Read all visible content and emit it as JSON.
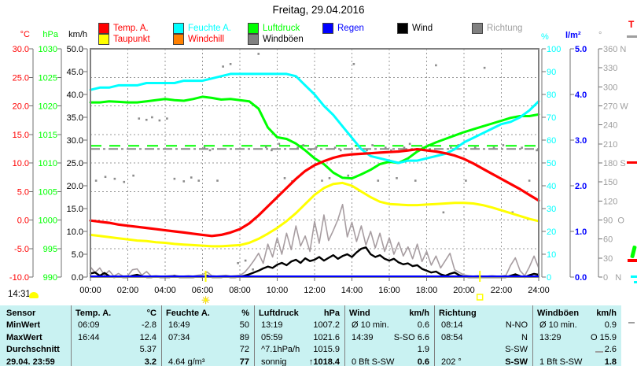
{
  "title": "Freitag, 29.04.2016",
  "status_time": "14:31",
  "edge_label": "T",
  "colors": {
    "temperature": "#ff0000",
    "dewpoint_line": "#ffff00",
    "humidity": "#00ffff",
    "pressure": "#00ff00",
    "rain": "#0000ff",
    "wind": "#000000",
    "gusts": "#a79da1",
    "direction": "#8c8c8c",
    "windchill_box": "#ff8000",
    "table_background": "#c9f2f2",
    "frame": "#808080"
  },
  "legend": {
    "row1": [
      {
        "label": "Temp. A.",
        "box": "#ff0000",
        "text": "#ff0000"
      },
      {
        "label": "Feuchte A.",
        "box": "#00ffff",
        "text": "#00ffff"
      },
      {
        "label": "Luftdruck",
        "box": "#00ff00",
        "text": "#00ff00"
      },
      {
        "label": "Regen",
        "box": "#0000ff",
        "text": "#0000ff"
      },
      {
        "label": "Wind",
        "box": "#000000",
        "text": "#000000"
      },
      {
        "label": "Richtung",
        "box": "#808080",
        "text": "#9e9e9e"
      }
    ],
    "row2": [
      {
        "label": "Taupunkt",
        "box": "#ffff00",
        "text": "#ff0000"
      },
      {
        "label": "Windchill",
        "box": "#ff8000",
        "text": "#ff0000"
      },
      {
        "label": "Windböen",
        "box": "#808080",
        "text": "#000000"
      }
    ]
  },
  "axes": {
    "celsius": {
      "unit": "°C",
      "color": "#ff0000",
      "ticks": [
        "30.0",
        "25.0",
        "20.0",
        "15.0",
        "10.0",
        "5.0",
        "0.0",
        "-5.0",
        "-10.0"
      ]
    },
    "hpa": {
      "unit": "hPa",
      "color": "#00ff00",
      "ticks": [
        "1030",
        "1025",
        "1020",
        "1015",
        "1010",
        "1005",
        "1000",
        "995",
        "990"
      ]
    },
    "kmh": {
      "unit": "km/h",
      "color": "#000000",
      "ticks": [
        "50.0",
        "45.0",
        "40.0",
        "35.0",
        "30.0",
        "25.0",
        "20.0",
        "15.0",
        "10.0",
        "5.0",
        "0.0"
      ]
    },
    "percent": {
      "unit": "%",
      "color": "#00ffff",
      "ticks": [
        "100",
        "90",
        "80",
        "70",
        "60",
        "50",
        "40",
        "30",
        "20",
        "10",
        "0"
      ]
    },
    "lm2": {
      "unit": "l/m²",
      "color": "#0000ff",
      "ticks": [
        "5.0",
        "4.0",
        "3.0",
        "2.0",
        "1.0",
        "0.0"
      ]
    },
    "deg": {
      "unit": "°",
      "color": "#9e9e9e",
      "ticks": [
        "360 N",
        "330",
        "300",
        "270 W",
        "240",
        "210",
        "180 S",
        "150",
        "120",
        "90  O",
        "60",
        "30",
        "0   N"
      ]
    },
    "time": {
      "ticks": [
        "00:00",
        "02:00",
        "04:00",
        "06:00",
        "08:00",
        "10:00",
        "12:00",
        "14:00",
        "16:00",
        "18:00",
        "20:00",
        "22:00",
        "24:00"
      ]
    }
  },
  "chart_data": {
    "type": "line",
    "title": "Freitag, 29.04.2016",
    "x_range_hours": [
      0,
      24
    ],
    "grid": {
      "x_step_hours": 2,
      "y_step_celsius": 5
    },
    "axes_ranges": {
      "celsius": [
        -10,
        30
      ],
      "hpa": [
        990,
        1030
      ],
      "kmh": [
        0,
        50
      ],
      "percent": [
        0,
        100
      ],
      "lm2": [
        0,
        5
      ],
      "deg": [
        0,
        360
      ]
    },
    "series": [
      {
        "name": "Temp. A.",
        "axis": "celsius",
        "color": "#ff0000",
        "step_h": 0.5,
        "values": [
          -0.1,
          -0.3,
          -0.5,
          -0.8,
          -1.0,
          -1.2,
          -1.4,
          -1.6,
          -1.8,
          -2.0,
          -2.2,
          -2.4,
          -2.6,
          -2.8,
          -2.6,
          -2.2,
          -1.6,
          -0.6,
          0.8,
          2.4,
          4.0,
          5.6,
          7.2,
          8.6,
          9.6,
          10.3,
          10.9,
          11.3,
          11.5,
          11.6,
          11.7,
          11.8,
          11.9,
          12.0,
          12.2,
          12.4,
          12.2,
          12.0,
          11.7,
          11.3,
          10.7,
          9.9,
          9.0,
          8.1,
          7.2,
          6.3,
          5.4,
          4.4,
          3.4
        ]
      },
      {
        "name": "Taupunkt",
        "axis": "celsius",
        "color": "#ffff00",
        "step_h": 0.5,
        "values": [
          -2.6,
          -2.8,
          -3.0,
          -3.2,
          -3.4,
          -3.6,
          -3.7,
          -3.9,
          -4.0,
          -4.2,
          -4.3,
          -4.4,
          -4.5,
          -4.6,
          -4.6,
          -4.5,
          -4.4,
          -4.0,
          -3.3,
          -2.4,
          -1.4,
          -0.2,
          1.2,
          2.8,
          4.4,
          5.6,
          6.3,
          6.5,
          6.0,
          5.0,
          4.0,
          3.2,
          2.8,
          2.7,
          2.6,
          2.6,
          2.7,
          2.8,
          2.9,
          3.0,
          3.0,
          2.9,
          2.6,
          2.2,
          1.7,
          1.2,
          0.7,
          0.2,
          -0.2
        ]
      },
      {
        "name": "Feuchte A.",
        "axis": "percent",
        "color": "#00ffff",
        "step_h": 0.5,
        "values": [
          82,
          83,
          83,
          84,
          84,
          84,
          85,
          85,
          85,
          85,
          86,
          86,
          86,
          87,
          88,
          89,
          89,
          89,
          89,
          89,
          89,
          89,
          88,
          84,
          80,
          75,
          71,
          66,
          61,
          56,
          53,
          52,
          51,
          50,
          51,
          51,
          52,
          53,
          54,
          56,
          59,
          61,
          63,
          65,
          67,
          68,
          70,
          73,
          77
        ]
      },
      {
        "name": "Luftdruck",
        "axis": "hpa",
        "color": "#00ff00",
        "step_h": 0.5,
        "values": [
          1020.6,
          1020.6,
          1020.8,
          1020.7,
          1020.6,
          1020.6,
          1020.8,
          1021.0,
          1021.2,
          1021.0,
          1020.9,
          1021.2,
          1021.6,
          1021.4,
          1021.1,
          1021.2,
          1021.0,
          1020.8,
          1019.5,
          1016.2,
          1014.5,
          1014.2,
          1013.4,
          1012.2,
          1010.8,
          1009.8,
          1008.3,
          1007.4,
          1007.3,
          1008.0,
          1008.8,
          1009.8,
          1010.2,
          1010.0,
          1010.8,
          1012.0,
          1012.9,
          1013.6,
          1014.2,
          1014.8,
          1015.4,
          1015.9,
          1016.4,
          1016.9,
          1017.4,
          1017.9,
          1018.2,
          1018.2,
          1018.5
        ]
      },
      {
        "name": "Wind",
        "axis": "kmh",
        "color": "#000000",
        "step_h": 0.25,
        "values": [
          0.8,
          1.0,
          0.3,
          0.9,
          0.2,
          0.0,
          0.1,
          0.0,
          0.0,
          0.3,
          0.5,
          0.2,
          0.0,
          0.0,
          0.1,
          0.0,
          0.0,
          0.0,
          0.2,
          0.0,
          0.0,
          0.0,
          0.0,
          0.1,
          0.0,
          0.3,
          0.0,
          0.0,
          0.0,
          0.1,
          0.0,
          0.0,
          0.1,
          0.3,
          0.6,
          1.0,
          1.4,
          1.9,
          2.3,
          2.0,
          2.7,
          3.1,
          2.6,
          3.4,
          3.8,
          3.1,
          4.1,
          3.5,
          3.8,
          4.4,
          3.6,
          4.2,
          4.8,
          4.0,
          4.6,
          5.0,
          4.4,
          5.4,
          6.2,
          6.5,
          5.0,
          4.4,
          4.8,
          4.0,
          3.6,
          4.0,
          3.2,
          2.8,
          3.0,
          2.4,
          2.6,
          1.8,
          1.4,
          1.0,
          1.2,
          0.6,
          0.3,
          0.7,
          1.0,
          0.4,
          0.1,
          0.0,
          0.0,
          0.0,
          0.0,
          0.0,
          0.0,
          0.0,
          0.0,
          0.0,
          0.3,
          0.6,
          0.2,
          0.0,
          0.4,
          0.7,
          0.5
        ]
      },
      {
        "name": "Windböen",
        "axis": "kmh",
        "color": "#a79da1",
        "step_h": 0.25,
        "values": [
          2.2,
          1.0,
          2.0,
          0.4,
          1.4,
          0.2,
          0.8,
          0.2,
          0.3,
          1.6,
          1.8,
          0.4,
          1.2,
          0.2,
          0.3,
          0.2,
          0.2,
          0.3,
          0.4,
          0.2,
          0.2,
          0.3,
          0.2,
          0.4,
          0.5,
          1.1,
          0.3,
          0.2,
          0.3,
          0.4,
          0.2,
          0.3,
          0.4,
          1.0,
          2.2,
          3.6,
          5.2,
          3.0,
          7.2,
          4.4,
          8.6,
          5.0,
          9.6,
          6.0,
          11.2,
          6.8,
          9.0,
          5.6,
          12.2,
          7.4,
          13.6,
          8.0,
          10.2,
          12.6,
          15.9,
          8.8,
          12.0,
          7.8,
          11.2,
          7.0,
          10.0,
          6.4,
          9.6,
          5.6,
          8.6,
          5.0,
          7.6,
          4.6,
          6.6,
          4.0,
          7.2,
          3.4,
          5.6,
          2.6,
          4.6,
          2.0,
          3.6,
          5.2,
          1.6,
          1.0,
          0.5,
          0.3,
          0.2,
          0.3,
          0.2,
          0.2,
          0.3,
          0.2,
          0.2,
          0.4,
          2.6,
          4.2,
          1.4,
          0.3,
          2.2,
          4.6,
          2.0
        ]
      },
      {
        "name": "Regen",
        "axis": "lm2",
        "color": "#0000ff",
        "step_h": 24,
        "values": [
          0,
          0
        ]
      }
    ],
    "direction_points_deg": [
      [
        0.3,
        152
      ],
      [
        0.8,
        158
      ],
      [
        1.3,
        155
      ],
      [
        1.8,
        150
      ],
      [
        2.3,
        160
      ],
      [
        2.6,
        250
      ],
      [
        3.0,
        248
      ],
      [
        3.3,
        252
      ],
      [
        3.7,
        247
      ],
      [
        4.1,
        250
      ],
      [
        4.5,
        155
      ],
      [
        5.0,
        151
      ],
      [
        5.4,
        157
      ],
      [
        5.8,
        152
      ],
      [
        6.1,
        204
      ],
      [
        6.4,
        200
      ],
      [
        6.8,
        152
      ],
      [
        7.1,
        332
      ],
      [
        7.5,
        336
      ],
      [
        7.9,
        22
      ],
      [
        8.3,
        26
      ],
      [
        8.7,
        12
      ],
      [
        9.0,
        352
      ],
      [
        9.4,
        205
      ],
      [
        9.7,
        200
      ],
      [
        10.1,
        210
      ],
      [
        10.4,
        156
      ],
      [
        10.8,
        151
      ],
      [
        11.1,
        204
      ],
      [
        11.4,
        208
      ],
      [
        11.8,
        201
      ],
      [
        12.1,
        205
      ],
      [
        12.4,
        152
      ],
      [
        12.8,
        156
      ],
      [
        13.1,
        204
      ],
      [
        13.4,
        200
      ],
      [
        13.8,
        160
      ],
      [
        14.1,
        336
      ],
      [
        14.4,
        204
      ],
      [
        14.8,
        200
      ],
      [
        15.1,
        208
      ],
      [
        15.4,
        152
      ],
      [
        15.8,
        204
      ],
      [
        16.1,
        200
      ],
      [
        16.4,
        156
      ],
      [
        16.8,
        204
      ],
      [
        17.1,
        210
      ],
      [
        17.4,
        152
      ],
      [
        17.8,
        204
      ],
      [
        18.1,
        208
      ],
      [
        18.5,
        334
      ],
      [
        18.9,
        102
      ],
      [
        19.3,
        204
      ],
      [
        19.7,
        208
      ],
      [
        20.1,
        152
      ],
      [
        20.6,
        204
      ],
      [
        21.1,
        330
      ],
      [
        21.6,
        204
      ],
      [
        22.1,
        208
      ],
      [
        22.6,
        102
      ],
      [
        23.1,
        204
      ],
      [
        23.5,
        152
      ],
      [
        23.9,
        200
      ]
    ],
    "reference_lines": [
      {
        "name": "1013-hpa-reference",
        "axis": "hpa",
        "value": 1013,
        "color": "#00ff00",
        "style": "dashed"
      },
      {
        "name": "avg-direction-202deg",
        "axis": "deg",
        "value": 202,
        "color": "#8a8a8a",
        "style": "dash-dot"
      }
    ],
    "markers": {
      "sunrise_hour": 6.17,
      "sunrise_symbol": "☀",
      "sunset_hour": 20.85
    }
  },
  "table": {
    "header": {
      "sensor": "Sensor",
      "cols": [
        {
          "label": "Temp. A.",
          "unit": "°C"
        },
        {
          "label": "Feuchte A.",
          "unit": "%"
        },
        {
          "label": "Luftdruck",
          "unit": "hPa"
        },
        {
          "label": "Wind",
          "unit": "km/h"
        },
        {
          "label": "Richtung",
          "unit": ""
        },
        {
          "label": "Windböen",
          "unit": "km/h"
        }
      ]
    },
    "rows": [
      {
        "label": "MinWert",
        "bold_values": false,
        "cells": [
          [
            "06:09",
            "-2.8"
          ],
          [
            "16:49",
            "50"
          ],
          [
            "13:19",
            "1007.2"
          ],
          [
            "Ø 10 min.",
            "0.6"
          ],
          [
            "08:14",
            "N-NO"
          ],
          [
            "Ø 10 min.",
            "0.9"
          ]
        ]
      },
      {
        "label": "MaxWert",
        "bold_values": false,
        "cells": [
          [
            "16:44",
            "12.4"
          ],
          [
            "07:34",
            "89"
          ],
          [
            "05:59",
            "1021.6"
          ],
          [
            "14:39",
            "S-SO 6.6"
          ],
          [
            "08:54",
            "N"
          ],
          [
            "13:29",
            "O 15.9"
          ]
        ]
      },
      {
        "label": "Durchschnitt",
        "bold_values": false,
        "cells": [
          [
            "",
            "5.37"
          ],
          [
            "",
            "72"
          ],
          [
            "^7.1hPa/h",
            "1015.9"
          ],
          [
            "",
            "1.9"
          ],
          [
            "",
            "S-SW"
          ],
          [
            "",
            "2.6"
          ]
        ]
      },
      {
        "label": "29.04. 23:59",
        "bold_values": true,
        "cells": [
          [
            "",
            "3.2"
          ],
          [
            "4.64 g/m³",
            "77"
          ],
          [
            "sonnig",
            "↑1018.4"
          ],
          [
            "0 Bft S-SW",
            "0.6"
          ],
          [
            "202 °",
            "S-SW"
          ],
          [
            "1 Bft S-SW",
            "1.8"
          ]
        ]
      }
    ]
  }
}
